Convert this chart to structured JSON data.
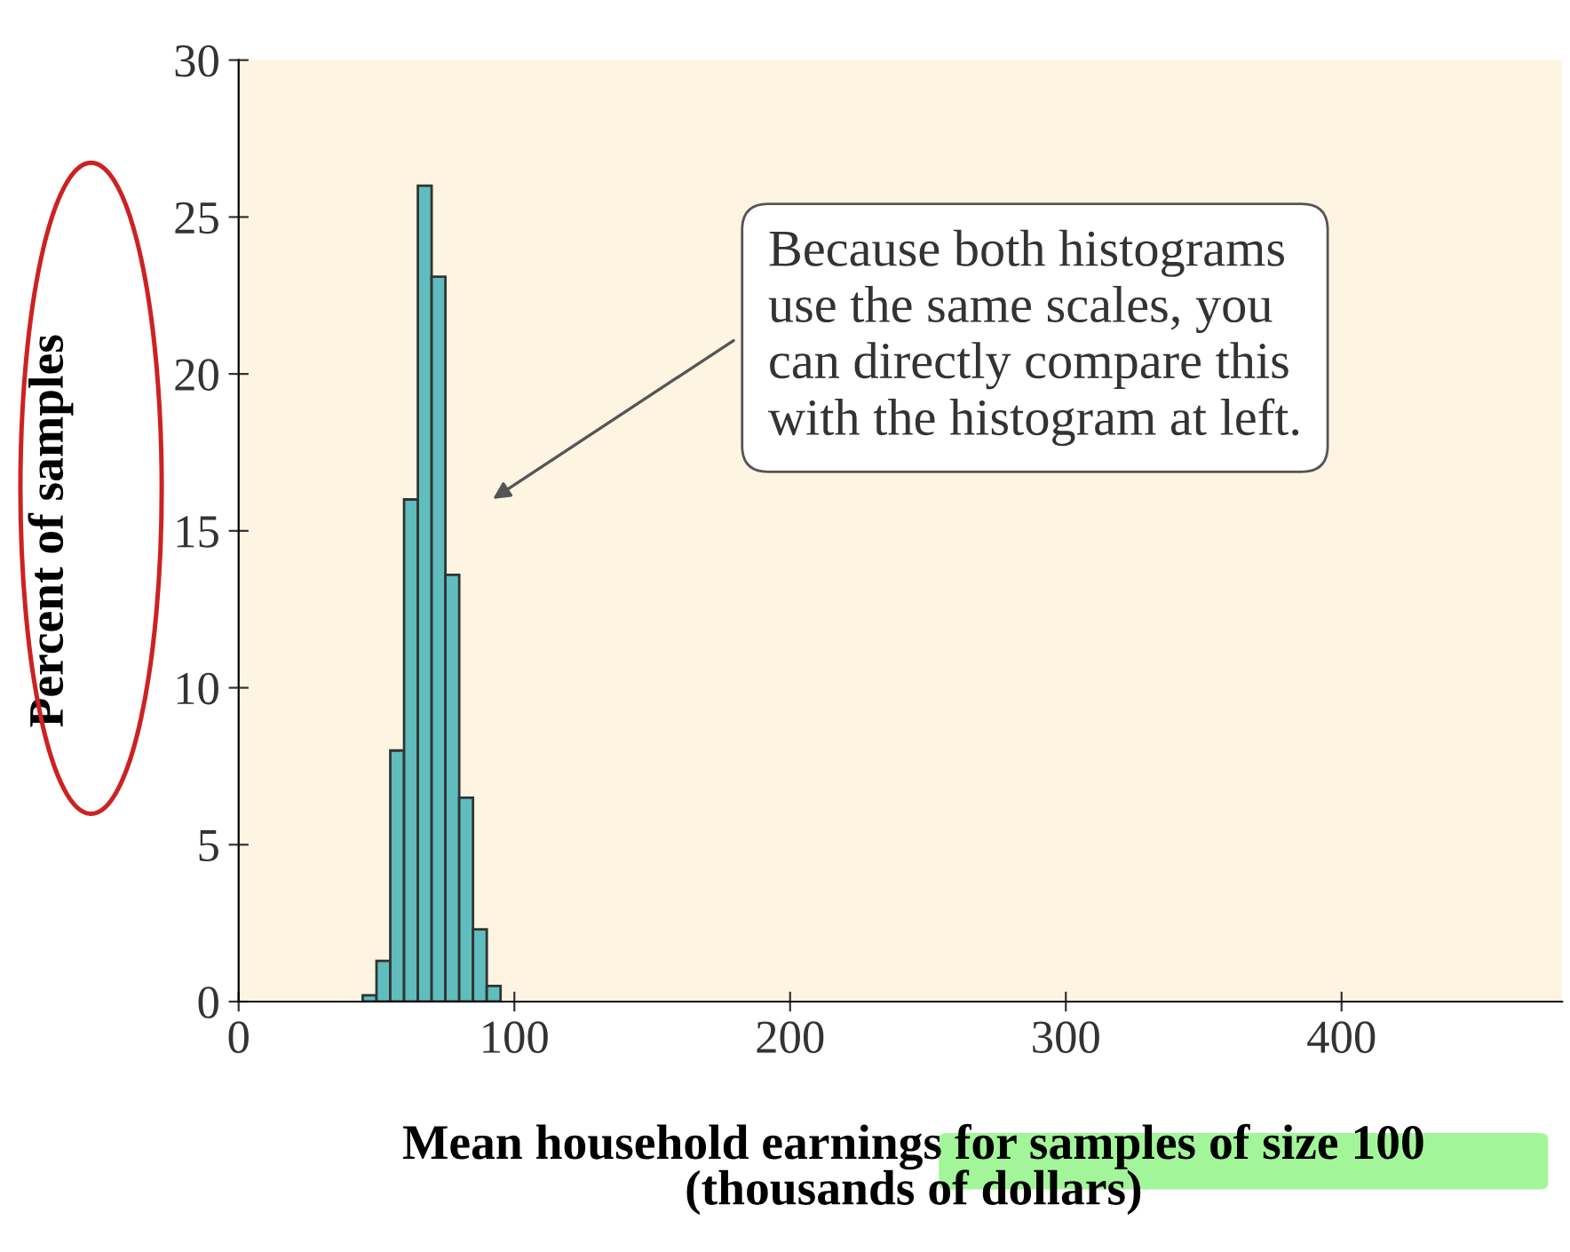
{
  "chart_data": {
    "type": "histogram",
    "xlabel": "Mean household earnings for samples of size 100\n(thousands of dollars)",
    "ylabel": "Percent of samples",
    "bins": [
      45,
      50,
      55,
      60,
      65,
      70,
      75,
      80,
      85,
      90,
      95
    ],
    "values": [
      0.2,
      1.3,
      8,
      16,
      26,
      23.1,
      13.6,
      6.5,
      2.3,
      0.5
    ],
    "color": "#5fbdbd",
    "xlim": [
      0,
      480
    ],
    "xticks": [
      0,
      100,
      200,
      300,
      400
    ],
    "ylim": [
      0,
      30
    ],
    "yticks": [
      0,
      5,
      10,
      15,
      20,
      25,
      30
    ],
    "grid": false,
    "annotations": [
      "Because both histograms\nuse the same scales, you\ncan directly compare this\nwith the histogram at left."
    ]
  }
}
